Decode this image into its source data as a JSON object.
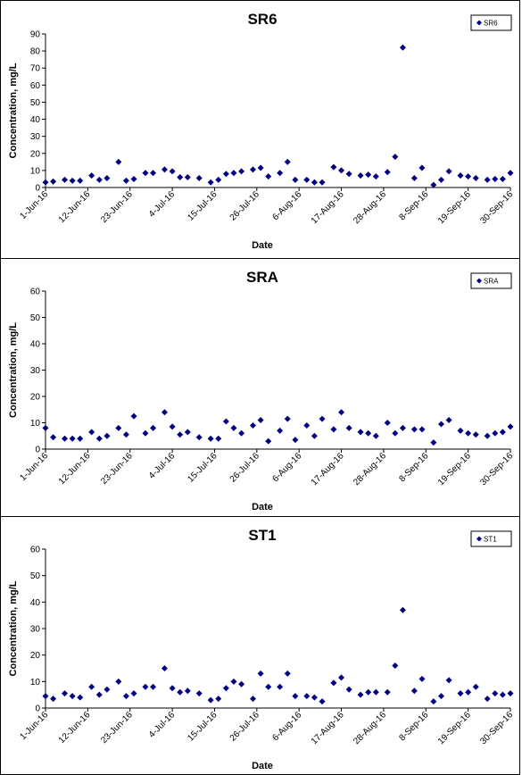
{
  "colors": {
    "marker": "#000080",
    "axis": "#000000",
    "text": "#000000"
  },
  "chart_data": [
    {
      "type": "scatter",
      "title": "SR6",
      "xlabel": "Date",
      "ylabel": "Concentration, mg/L",
      "legend": "SR6",
      "legend_position": "top-right",
      "grid": false,
      "x_ticks": [
        "1-Jun-16",
        "12-Jun-16",
        "23-Jun-16",
        "4-Jul-16",
        "15-Jul-16",
        "26-Jul-16",
        "6-Aug-16",
        "17-Aug-16",
        "28-Aug-16",
        "8-Sep-16",
        "19-Sep-16",
        "30-Sep-16"
      ],
      "y_ticks": [
        0,
        10,
        20,
        30,
        40,
        50,
        60,
        70,
        80,
        90
      ],
      "ylim": [
        0,
        90
      ],
      "xlim": [
        "2016-06-01",
        "2016-09-30"
      ],
      "points": [
        [
          "2016-06-01",
          3
        ],
        [
          "2016-06-03",
          3.5
        ],
        [
          "2016-06-06",
          4.5
        ],
        [
          "2016-06-08",
          4
        ],
        [
          "2016-06-10",
          4
        ],
        [
          "2016-06-13",
          7
        ],
        [
          "2016-06-15",
          4.5
        ],
        [
          "2016-06-17",
          5.5
        ],
        [
          "2016-06-20",
          15
        ],
        [
          "2016-06-22",
          4
        ],
        [
          "2016-06-24",
          5
        ],
        [
          "2016-06-27",
          8.5
        ],
        [
          "2016-06-29",
          8.5
        ],
        [
          "2016-07-02",
          10.5
        ],
        [
          "2016-07-04",
          9.5
        ],
        [
          "2016-07-06",
          6
        ],
        [
          "2016-07-08",
          6
        ],
        [
          "2016-07-11",
          5.5
        ],
        [
          "2016-07-14",
          3
        ],
        [
          "2016-07-16",
          4.5
        ],
        [
          "2016-07-18",
          8
        ],
        [
          "2016-07-20",
          8.5
        ],
        [
          "2016-07-22",
          9.5
        ],
        [
          "2016-07-25",
          10.5
        ],
        [
          "2016-07-27",
          11.5
        ],
        [
          "2016-07-29",
          6.5
        ],
        [
          "2016-08-01",
          8.5
        ],
        [
          "2016-08-03",
          15
        ],
        [
          "2016-08-05",
          4.5
        ],
        [
          "2016-08-08",
          4.5
        ],
        [
          "2016-08-10",
          3
        ],
        [
          "2016-08-12",
          3
        ],
        [
          "2016-08-15",
          12
        ],
        [
          "2016-08-17",
          10
        ],
        [
          "2016-08-19",
          8
        ],
        [
          "2016-08-22",
          7
        ],
        [
          "2016-08-24",
          7.5
        ],
        [
          "2016-08-26",
          6.5
        ],
        [
          "2016-08-29",
          9
        ],
        [
          "2016-08-31",
          18
        ],
        [
          "2016-09-02",
          82
        ],
        [
          "2016-09-05",
          5.5
        ],
        [
          "2016-09-07",
          11.5
        ],
        [
          "2016-09-10",
          1.5
        ],
        [
          "2016-09-12",
          4.5
        ],
        [
          "2016-09-14",
          9.5
        ],
        [
          "2016-09-17",
          7
        ],
        [
          "2016-09-19",
          6.5
        ],
        [
          "2016-09-21",
          5.5
        ],
        [
          "2016-09-24",
          4.5
        ],
        [
          "2016-09-26",
          5
        ],
        [
          "2016-09-28",
          5
        ],
        [
          "2016-09-30",
          8.5
        ]
      ]
    },
    {
      "type": "scatter",
      "title": "SRA",
      "xlabel": "Date",
      "ylabel": "Concentration, mg/L",
      "legend": "SRA",
      "legend_position": "top-right",
      "grid": false,
      "x_ticks": [
        "1-Jun-16",
        "12-Jun-16",
        "23-Jun-16",
        "4-Jul-16",
        "15-Jul-16",
        "26-Jul-16",
        "6-Aug-16",
        "17-Aug-16",
        "28-Aug-16",
        "8-Sep-16",
        "19-Sep-16",
        "30-Sep-16"
      ],
      "y_ticks": [
        0,
        10,
        20,
        30,
        40,
        50,
        60
      ],
      "ylim": [
        0,
        60
      ],
      "xlim": [
        "2016-06-01",
        "2016-09-30"
      ],
      "points": [
        [
          "2016-06-01",
          8
        ],
        [
          "2016-06-03",
          4.5
        ],
        [
          "2016-06-06",
          4
        ],
        [
          "2016-06-08",
          4
        ],
        [
          "2016-06-10",
          4
        ],
        [
          "2016-06-13",
          6.5
        ],
        [
          "2016-06-15",
          4
        ],
        [
          "2016-06-17",
          5
        ],
        [
          "2016-06-20",
          8
        ],
        [
          "2016-06-22",
          5.5
        ],
        [
          "2016-06-24",
          12.5
        ],
        [
          "2016-06-27",
          6
        ],
        [
          "2016-06-29",
          8
        ],
        [
          "2016-07-02",
          14
        ],
        [
          "2016-07-04",
          8.5
        ],
        [
          "2016-07-06",
          5.5
        ],
        [
          "2016-07-08",
          6.5
        ],
        [
          "2016-07-11",
          4.5
        ],
        [
          "2016-07-14",
          4
        ],
        [
          "2016-07-16",
          4
        ],
        [
          "2016-07-18",
          10.5
        ],
        [
          "2016-07-20",
          8
        ],
        [
          "2016-07-22",
          6
        ],
        [
          "2016-07-25",
          9
        ],
        [
          "2016-07-27",
          11
        ],
        [
          "2016-07-29",
          3
        ],
        [
          "2016-08-01",
          7
        ],
        [
          "2016-08-03",
          11.5
        ],
        [
          "2016-08-05",
          3.5
        ],
        [
          "2016-08-08",
          9
        ],
        [
          "2016-08-10",
          5
        ],
        [
          "2016-08-12",
          11.5
        ],
        [
          "2016-08-15",
          7.5
        ],
        [
          "2016-08-17",
          14
        ],
        [
          "2016-08-19",
          8
        ],
        [
          "2016-08-22",
          6.5
        ],
        [
          "2016-08-24",
          6
        ],
        [
          "2016-08-26",
          5
        ],
        [
          "2016-08-29",
          10
        ],
        [
          "2016-08-31",
          6
        ],
        [
          "2016-09-02",
          8
        ],
        [
          "2016-09-05",
          7.5
        ],
        [
          "2016-09-07",
          7.5
        ],
        [
          "2016-09-10",
          2.5
        ],
        [
          "2016-09-12",
          9.5
        ],
        [
          "2016-09-14",
          11
        ],
        [
          "2016-09-17",
          7
        ],
        [
          "2016-09-19",
          6
        ],
        [
          "2016-09-21",
          5.5
        ],
        [
          "2016-09-24",
          5
        ],
        [
          "2016-09-26",
          6
        ],
        [
          "2016-09-28",
          6.5
        ],
        [
          "2016-09-30",
          8.5
        ]
      ]
    },
    {
      "type": "scatter",
      "title": "ST1",
      "xlabel": "Date",
      "ylabel": "Concentration, mg/L",
      "legend": "ST1",
      "legend_position": "top-right",
      "grid": false,
      "x_ticks": [
        "1-Jun-16",
        "12-Jun-16",
        "23-Jun-16",
        "4-Jul-16",
        "15-Jul-16",
        "26-Jul-16",
        "6-Aug-16",
        "17-Aug-16",
        "28-Aug-16",
        "8-Sep-16",
        "19-Sep-16",
        "30-Sep-16"
      ],
      "y_ticks": [
        0,
        10,
        20,
        30,
        40,
        50,
        60
      ],
      "ylim": [
        0,
        60
      ],
      "xlim": [
        "2016-06-01",
        "2016-09-30"
      ],
      "points": [
        [
          "2016-06-01",
          4.5
        ],
        [
          "2016-06-03",
          3.5
        ],
        [
          "2016-06-06",
          5.5
        ],
        [
          "2016-06-08",
          4.5
        ],
        [
          "2016-06-10",
          4
        ],
        [
          "2016-06-13",
          8
        ],
        [
          "2016-06-15",
          5
        ],
        [
          "2016-06-17",
          7
        ],
        [
          "2016-06-20",
          10
        ],
        [
          "2016-06-22",
          4.5
        ],
        [
          "2016-06-24",
          5.5
        ],
        [
          "2016-06-27",
          8
        ],
        [
          "2016-06-29",
          8
        ],
        [
          "2016-07-02",
          15
        ],
        [
          "2016-07-04",
          7.5
        ],
        [
          "2016-07-06",
          6
        ],
        [
          "2016-07-08",
          6.5
        ],
        [
          "2016-07-11",
          5.5
        ],
        [
          "2016-07-14",
          3
        ],
        [
          "2016-07-16",
          3.5
        ],
        [
          "2016-07-18",
          7.5
        ],
        [
          "2016-07-20",
          10
        ],
        [
          "2016-07-22",
          9
        ],
        [
          "2016-07-25",
          3.5
        ],
        [
          "2016-07-27",
          13
        ],
        [
          "2016-07-29",
          8
        ],
        [
          "2016-08-01",
          8
        ],
        [
          "2016-08-03",
          13
        ],
        [
          "2016-08-05",
          4.5
        ],
        [
          "2016-08-08",
          4.5
        ],
        [
          "2016-08-10",
          4
        ],
        [
          "2016-08-12",
          2.5
        ],
        [
          "2016-08-15",
          9.5
        ],
        [
          "2016-08-17",
          11.5
        ],
        [
          "2016-08-19",
          7
        ],
        [
          "2016-08-22",
          5
        ],
        [
          "2016-08-24",
          6
        ],
        [
          "2016-08-26",
          6
        ],
        [
          "2016-08-29",
          6
        ],
        [
          "2016-08-31",
          16
        ],
        [
          "2016-09-02",
          37
        ],
        [
          "2016-09-05",
          6.5
        ],
        [
          "2016-09-07",
          11
        ],
        [
          "2016-09-10",
          2.5
        ],
        [
          "2016-09-12",
          4.5
        ],
        [
          "2016-09-14",
          10.5
        ],
        [
          "2016-09-17",
          5.5
        ],
        [
          "2016-09-19",
          6
        ],
        [
          "2016-09-21",
          8
        ],
        [
          "2016-09-24",
          3.5
        ],
        [
          "2016-09-26",
          5.5
        ],
        [
          "2016-09-28",
          5
        ],
        [
          "2016-09-30",
          5.5
        ]
      ]
    }
  ]
}
